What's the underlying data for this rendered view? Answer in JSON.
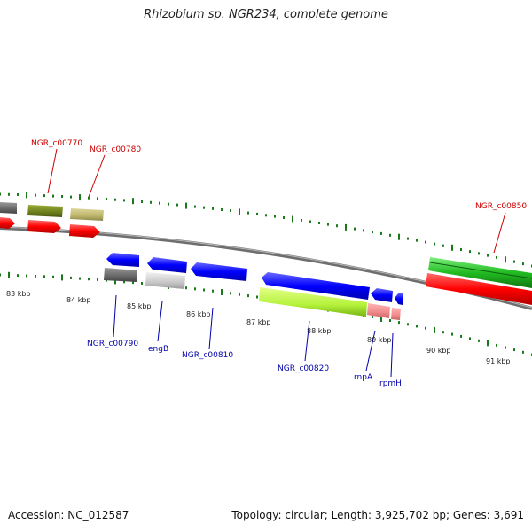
{
  "title": "Rhizobium sp. NGR234, complete genome",
  "footer": {
    "accession": "Accession: NC_012587",
    "topology": "Topology: circular; Length: 3,925,702 bp; Genes: 3,691"
  },
  "scale_labels": [
    "83 kbp",
    "84 kbp",
    "85 kbp",
    "86 kbp",
    "87 kbp",
    "88 kbp",
    "89 kbp",
    "90 kbp",
    "91 kbp"
  ],
  "gene_labels": {
    "NGR_c00770": "NGR_c00770",
    "NGR_c00780": "NGR_c00780",
    "NGR_c00850": "NGR_c00850",
    "NGR_c00790": "NGR_c00790",
    "engB": "engB",
    "NGR_c00810": "NGR_c00810",
    "NGR_c00820": "NGR_c00820",
    "rnpA": "rnpA",
    "rpmH": "rpmH"
  },
  "colors": {
    "forward_strand_label": "#cc0000",
    "reverse_strand_label": "#0000aa",
    "cds_forward": "#ff0000",
    "cds_reverse": "#0000ff",
    "backbone": "#808080",
    "ticks": "#1a7a1a"
  }
}
